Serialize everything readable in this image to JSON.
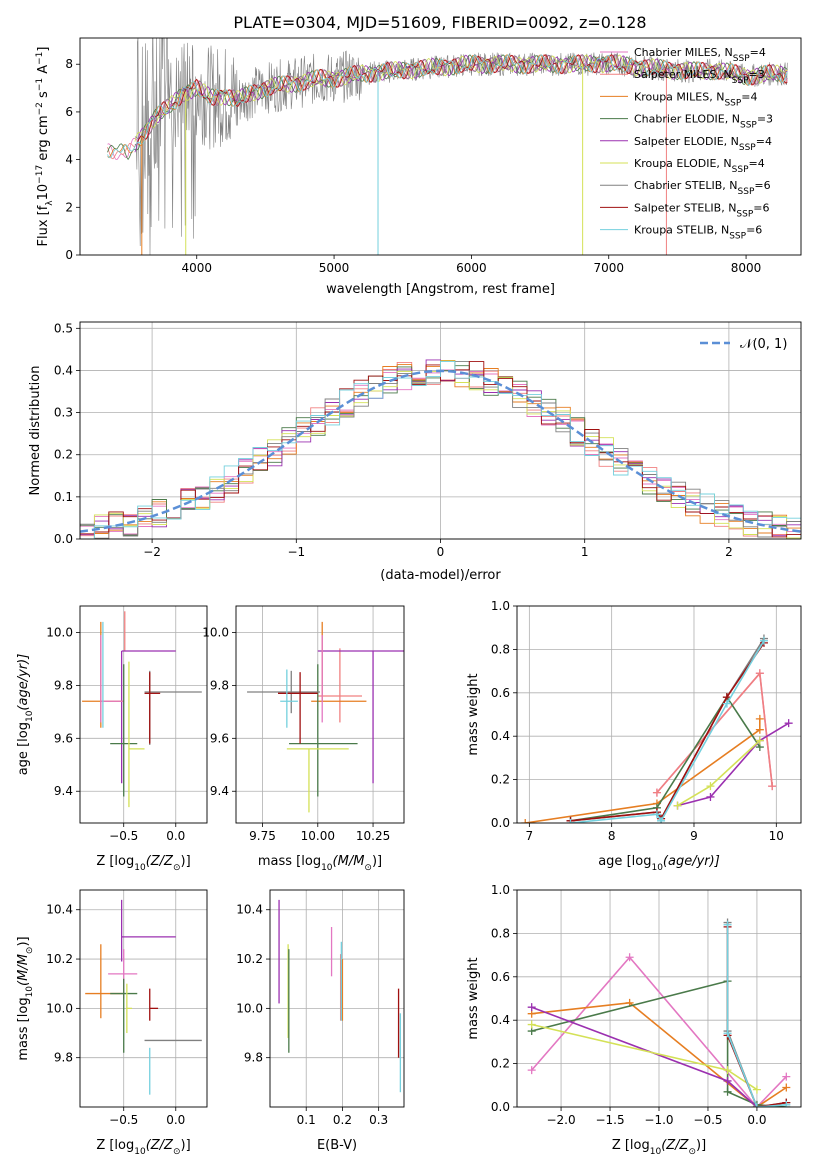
{
  "title": "PLATE=0304, MJD=51609, FIBERID=0092, z=0.128",
  "colors": {
    "Chabrier MILES": "#e377c2",
    "Salpeter MILES": "#f08080",
    "Kroupa MILES": "#e67e22",
    "Chabrier ELODIE": "#4a7a4a",
    "Salpeter ELODIE": "#9b30b0",
    "Kroupa ELODIE": "#d4e157",
    "Chabrier STELIB": "#808080",
    "Salpeter STELIB": "#a01010",
    "Kroupa STELIB": "#74d0de",
    "normal": "#5b8fd6",
    "grid": "#b0b0b0"
  },
  "chart_data": [
    {
      "type": "line",
      "id": "spectrum",
      "xlabel": "wavelength [Angstrom, rest frame]",
      "ylabel_main": "Flux [f",
      "ylabel_sub": "λ",
      "ylabel_rest": "10",
      "ylabel_exp": "−17",
      "ylabel_units": " erg cm",
      "ylabel_units_exp": "−2",
      "ylabel_units2": " s",
      "ylabel_units2_exp": "−1",
      "ylabel_units3": " A",
      "ylabel_units3_exp": "−1",
      "ylabel_end": "]",
      "xlim": [
        3150,
        8400
      ],
      "ylim": [
        0,
        9.1
      ],
      "xticks": [
        4000,
        5000,
        6000,
        7000,
        8000
      ],
      "yticks": [
        0,
        2,
        4,
        6,
        8
      ],
      "legend": [
        {
          "label": "Chabrier MILES, N",
          "sub": "SSP",
          "suffix": "=4"
        },
        {
          "label": "Salpeter MILES, N",
          "sub": "SSP",
          "suffix": "=3"
        },
        {
          "label": "Kroupa MILES, N",
          "sub": "SSP",
          "suffix": "=4"
        },
        {
          "label": "Chabrier ELODIE, N",
          "sub": "SSP",
          "suffix": "=3"
        },
        {
          "label": "Salpeter ELODIE, N",
          "sub": "SSP",
          "suffix": "=4"
        },
        {
          "label": "Kroupa ELODIE, N",
          "sub": "SSP",
          "suffix": "=4"
        },
        {
          "label": "Chabrier STELIB, N",
          "sub": "SSP",
          "suffix": "=6"
        },
        {
          "label": "Salpeter STELIB, N",
          "sub": "SSP",
          "suffix": "=6"
        },
        {
          "label": "Kroupa STELIB, N",
          "sub": "SSP",
          "suffix": "=6"
        }
      ],
      "legend_position": "top-right",
      "grid": false,
      "continuum": {
        "x": [
          3350,
          3500,
          3600,
          3700,
          3800,
          3900,
          4000,
          4100,
          4200,
          4300,
          4400,
          4500,
          4600,
          4700,
          4800,
          4900,
          5000,
          5200,
          5400,
          5600,
          5800,
          6000,
          6200,
          6400,
          6600,
          6800,
          7000,
          7200,
          7400,
          7600,
          7800,
          8000,
          8200,
          8300
        ],
        "y": [
          4.5,
          4.2,
          5.0,
          5.8,
          6.2,
          6.8,
          7.0,
          6.6,
          6.7,
          6.5,
          6.8,
          7.0,
          7.1,
          7.2,
          7.3,
          7.4,
          7.4,
          7.6,
          7.7,
          7.8,
          7.9,
          8.0,
          8.0,
          8.0,
          8.0,
          8.0,
          8.05,
          7.9,
          7.8,
          7.7,
          7.75,
          7.5,
          7.6,
          7.6
        ]
      }
    },
    {
      "type": "histogram",
      "id": "residuals",
      "xlabel": "(data-model)/error",
      "ylabel": "Normed distribution",
      "xlim": [
        -2.5,
        2.5
      ],
      "ylim": [
        0,
        0.515
      ],
      "xticks": [
        -2,
        -1,
        0,
        1,
        2
      ],
      "xtick_labels": [
        "−2",
        "−1",
        "0",
        "1",
        "2"
      ],
      "yticks": [
        0.0,
        0.1,
        0.2,
        0.3,
        0.4,
        0.5
      ],
      "ytick_labels": [
        "0.0",
        "0.1",
        "0.2",
        "0.3",
        "0.4",
        "0.5"
      ],
      "legend_label": "𝒩(0, 1)",
      "legend_position": "top-right",
      "grid": true,
      "bin_width": 0.1,
      "bins_start": -2.5
    },
    {
      "type": "scatter",
      "id": "age_vs_Z",
      "xlabel": "Z [log",
      "xlabel_sub": "10",
      "xlabel_end": "(Z/Z",
      "xlabel_sun": "⊙",
      "xlabel_close": ")]",
      "ylabel": "age  [log",
      "ylabel_sub": "10",
      "ylabel_end": "(age/yr)]",
      "xlim": [
        -0.92,
        0.3
      ],
      "ylim": [
        9.28,
        10.1
      ],
      "xticks": [
        -0.5,
        0.0
      ],
      "xtick_labels": [
        "−0.5",
        "0.0"
      ],
      "yticks": [
        9.4,
        9.6,
        9.8,
        10.0
      ],
      "ytick_labels": [
        "9.4",
        "9.6",
        "9.8",
        "10.0"
      ],
      "grid": true,
      "points": [
        {
          "model": "Chabrier MILES",
          "x": -0.49,
          "y": 9.72,
          "xerr": 0.0,
          "yerr": [
            0.0,
            0.0
          ]
        },
        {
          "model": "Salpeter MILES",
          "x": -0.49,
          "y": 9.93,
          "xerr": 0.0,
          "yerr": [
            0.0,
            0.15
          ]
        },
        {
          "model": "Kroupa MILES",
          "x": -0.72,
          "y": 9.74,
          "xerr": 0.0,
          "yerr": [
            0.0,
            0.3
          ]
        },
        {
          "model": "Chabrier ELODIE",
          "x": -0.5,
          "y": 9.58,
          "xerr": 0.13,
          "yerr": [
            0.2,
            0.0
          ]
        },
        {
          "model": "Salpeter ELODIE",
          "x": -0.52,
          "y": 9.93,
          "xerr": 0.0,
          "yerr": [
            0.5,
            0.0
          ]
        },
        {
          "model": "Kroupa ELODIE",
          "x": -0.45,
          "y": 9.56,
          "xerr": 0.15,
          "yerr": [
            0.22,
            0.33
          ]
        },
        {
          "model": "Chabrier STELIB",
          "x": -0.25,
          "y": 9.77,
          "xerr": 0.0,
          "yerr": [
            0.2,
            0.08
          ]
        },
        {
          "model": "Salpeter STELIB",
          "x": -0.25,
          "y": 9.72,
          "xerr": 0.0,
          "yerr": [
            0.15,
            0.13
          ]
        },
        {
          "model": "Kroupa STELIB",
          "x": -0.72,
          "y": 9.74,
          "xerr": 0.0,
          "yerr": [
            0.1,
            0.3
          ]
        }
      ]
    },
    {
      "type": "scatter",
      "id": "age_vs_mass",
      "xlabel": "mass [log",
      "xlabel_sub": "10",
      "xlabel_end": "(M/M",
      "xlabel_sun": "⊙",
      "xlabel_close": ")]",
      "xlim": [
        9.63,
        10.39
      ],
      "ylim": [
        9.28,
        10.1
      ],
      "xticks": [
        9.75,
        10.0,
        10.25
      ],
      "xtick_labels": [
        "9.75",
        "10.00",
        "10.25"
      ],
      "yticks": [
        9.4,
        9.6,
        9.8,
        10.0
      ],
      "ytick_labels": [
        "9.4",
        "9.6",
        "9.8",
        "10.0"
      ],
      "grid": true
    },
    {
      "type": "line",
      "id": "massweight_vs_age",
      "xlabel": "age  [log",
      "xlabel_sub": "10",
      "xlabel_end": "(age/yr)]",
      "ylabel": "mass weight",
      "xlim": [
        6.85,
        10.3
      ],
      "ylim": [
        0,
        1.0
      ],
      "xticks": [
        7,
        8,
        9,
        10
      ],
      "xtick_labels": [
        "7",
        "8",
        "9",
        "10"
      ],
      "yticks": [
        0.0,
        0.2,
        0.4,
        0.6,
        0.8,
        1.0
      ],
      "ytick_labels": [
        "0.0",
        "0.2",
        "0.4",
        "0.6",
        "0.8",
        "1.0"
      ],
      "grid": true,
      "series": [
        {
          "model": "Chabrier MILES",
          "x": [
            8.55,
            9.8,
            9.95
          ],
          "y": [
            0.14,
            0.69,
            0.17
          ]
        },
        {
          "model": "Salpeter MILES",
          "x": [
            8.55,
            9.8,
            9.95
          ],
          "y": [
            0.14,
            0.69,
            0.17
          ]
        },
        {
          "model": "Kroupa MILES",
          "x": [
            6.95,
            8.55,
            9.8,
            9.8
          ],
          "y": [
            0.0,
            0.09,
            0.43,
            0.48
          ]
        },
        {
          "model": "Chabrier ELODIE",
          "x": [
            7.5,
            8.55,
            9.4,
            9.8
          ],
          "y": [
            0.01,
            0.07,
            0.58,
            0.35
          ]
        },
        {
          "model": "Salpeter ELODIE",
          "x": [
            8.8,
            9.2,
            9.8,
            10.15
          ],
          "y": [
            0.08,
            0.12,
            0.38,
            0.46
          ]
        },
        {
          "model": "Kroupa ELODIE",
          "x": [
            8.8,
            9.2,
            9.8
          ],
          "y": [
            0.08,
            0.17,
            0.38
          ]
        },
        {
          "model": "Chabrier STELIB",
          "x": [
            7.5,
            8.55,
            8.6,
            9.4,
            9.85
          ],
          "y": [
            0.01,
            0.05,
            0.02,
            0.58,
            0.85
          ]
        },
        {
          "model": "Salpeter STELIB",
          "x": [
            7.5,
            8.55,
            8.6,
            9.4,
            9.85
          ],
          "y": [
            0.01,
            0.05,
            0.02,
            0.58,
            0.83
          ]
        },
        {
          "model": "Kroupa STELIB",
          "x": [
            7.5,
            8.55,
            8.6,
            9.4,
            9.85
          ],
          "y": [
            0.0,
            0.04,
            0.01,
            0.55,
            0.84
          ]
        }
      ]
    },
    {
      "type": "scatter",
      "id": "mass_vs_Z",
      "xlabel": "Z [log",
      "xlabel_sub": "10",
      "xlabel_end": "(Z/Z",
      "xlabel_sun": "⊙",
      "xlabel_close": ")]",
      "ylabel": "mass [log",
      "ylabel_sub": "10",
      "ylabel_end": "(M/M",
      "ylabel_sun": "⊙",
      "ylabel_close": ")]",
      "xlim": [
        -0.92,
        0.3
      ],
      "ylim": [
        9.6,
        10.48
      ],
      "xticks": [
        -0.5,
        0.0
      ],
      "xtick_labels": [
        "−0.5",
        "0.0"
      ],
      "yticks": [
        9.8,
        10.0,
        10.2,
        10.4
      ],
      "ytick_labels": [
        "9.8",
        "10.0",
        "10.2",
        "10.4"
      ],
      "grid": true
    },
    {
      "type": "scatter",
      "id": "mass_vs_ebv",
      "xlabel": "E(B-V)",
      "xlim": [
        0.0,
        0.37
      ],
      "ylim": [
        9.6,
        10.48
      ],
      "xticks": [
        0.1,
        0.2,
        0.3
      ],
      "xtick_labels": [
        "0.1",
        "0.2",
        "0.3"
      ],
      "yticks": [
        9.8,
        10.0,
        10.2,
        10.4
      ],
      "ytick_labels": [
        "9.8",
        "10.0",
        "10.2",
        "10.4"
      ],
      "grid": true
    },
    {
      "type": "line",
      "id": "massweight_vs_Z",
      "xlabel": "Z [log",
      "xlabel_sub": "10",
      "xlabel_end": "(Z/Z",
      "xlabel_sun": "⊙",
      "xlabel_close": ")]",
      "ylabel": "mass weight",
      "xlim": [
        -2.45,
        0.45
      ],
      "ylim": [
        0,
        1.0
      ],
      "xticks": [
        -2.0,
        -1.5,
        -1.0,
        -0.5,
        0.0
      ],
      "xtick_labels": [
        "−2.0",
        "−1.5",
        "−1.0",
        "−0.5",
        "0.0"
      ],
      "yticks": [
        0.0,
        0.2,
        0.4,
        0.6,
        0.8,
        1.0
      ],
      "ytick_labels": [
        "0.0",
        "0.2",
        "0.4",
        "0.6",
        "0.8",
        "1.0"
      ],
      "grid": true,
      "series": [
        {
          "model": "Chabrier MILES",
          "x": [
            -2.3,
            -1.3,
            0.0,
            0.3
          ],
          "y": [
            0.17,
            0.69,
            0.0,
            0.14
          ]
        },
        {
          "model": "Kroupa MILES",
          "x": [
            -2.3,
            -1.3,
            0.0,
            0.3
          ],
          "y": [
            0.43,
            0.48,
            0.0,
            0.09
          ]
        },
        {
          "model": "Chabrier ELODIE",
          "x": [
            -2.3,
            -0.3,
            -0.3,
            0.0,
            0.3
          ],
          "y": [
            0.35,
            0.58,
            0.07,
            0.01,
            0.0
          ]
        },
        {
          "model": "Salpeter ELODIE",
          "x": [
            -2.3,
            -0.3,
            0.0
          ],
          "y": [
            0.46,
            0.12,
            0.0
          ]
        },
        {
          "model": "Kroupa ELODIE",
          "x": [
            -2.3,
            -0.3,
            0.0
          ],
          "y": [
            0.38,
            0.17,
            0.08
          ]
        },
        {
          "model": "Chabrier STELIB",
          "x": [
            -0.3,
            -0.3,
            0.0,
            0.3
          ],
          "y": [
            0.85,
            0.35,
            0.0,
            0.02
          ]
        },
        {
          "model": "Salpeter STELIB",
          "x": [
            -0.3,
            -0.3,
            0.0,
            0.3
          ],
          "y": [
            0.83,
            0.33,
            0.0,
            0.02
          ]
        },
        {
          "model": "Kroupa STELIB",
          "x": [
            -0.3,
            -0.3,
            0.0,
            0.3
          ],
          "y": [
            0.84,
            0.34,
            0.0,
            0.01
          ]
        }
      ]
    }
  ]
}
